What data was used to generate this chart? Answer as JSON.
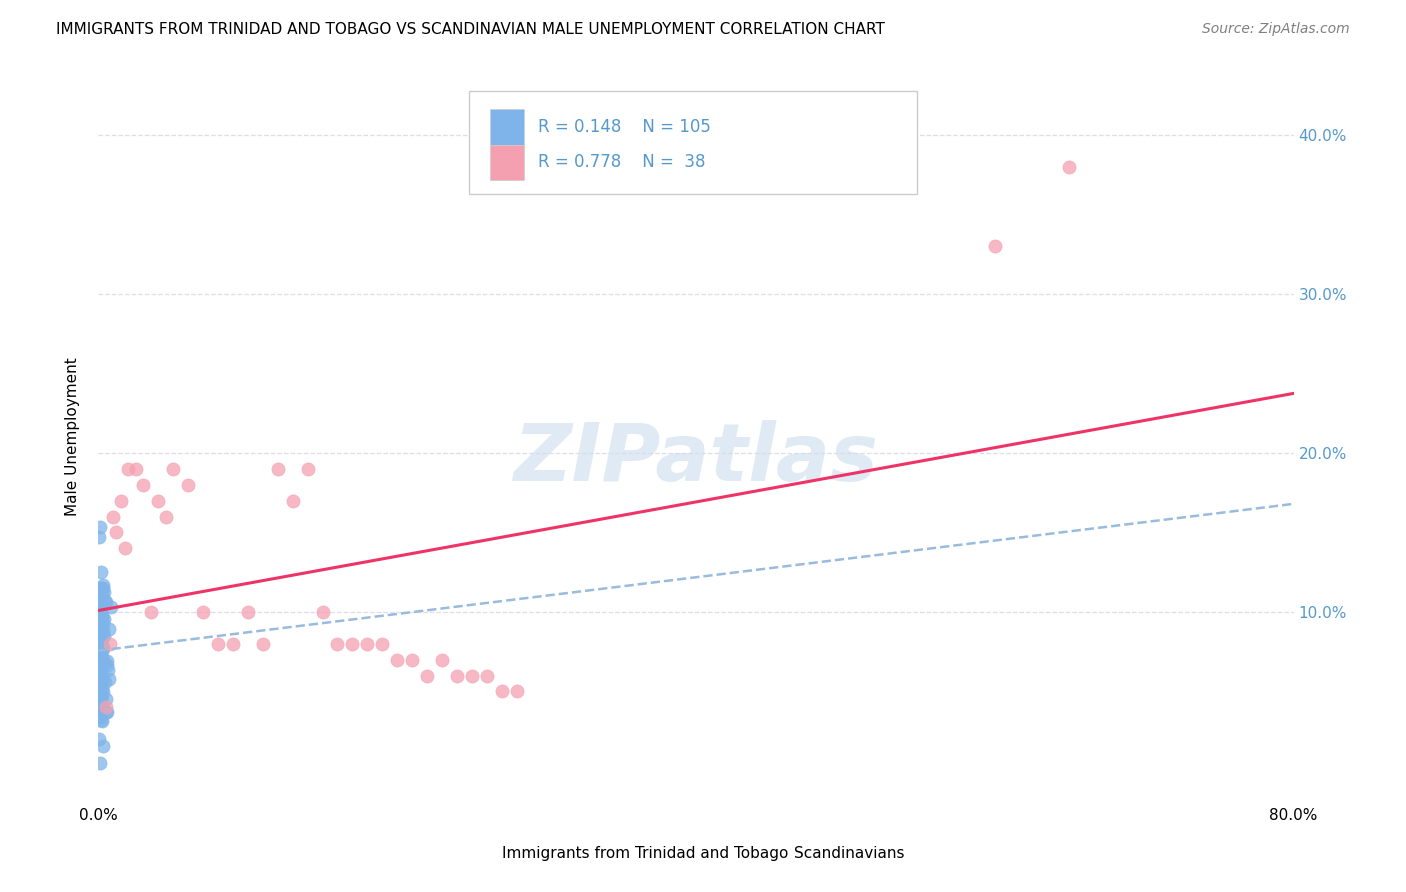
{
  "title": "IMMIGRANTS FROM TRINIDAD AND TOBAGO VS SCANDINAVIAN MALE UNEMPLOYMENT CORRELATION CHART",
  "source": "Source: ZipAtlas.com",
  "ylabel": "Male Unemployment",
  "xlim": [
    0,
    0.8
  ],
  "ylim": [
    -0.02,
    0.44
  ],
  "blue_color": "#7EB4EA",
  "pink_color": "#F4A0B0",
  "blue_line_color": "#99BBDD",
  "pink_line_color": "#EE3366",
  "watermark_color": "#CCDDED",
  "grid_color": "#DDDDEE",
  "text_color": "#5599CC",
  "R_blue": 0.148,
  "N_blue": 105,
  "R_pink": 0.778,
  "N_pink": 38
}
